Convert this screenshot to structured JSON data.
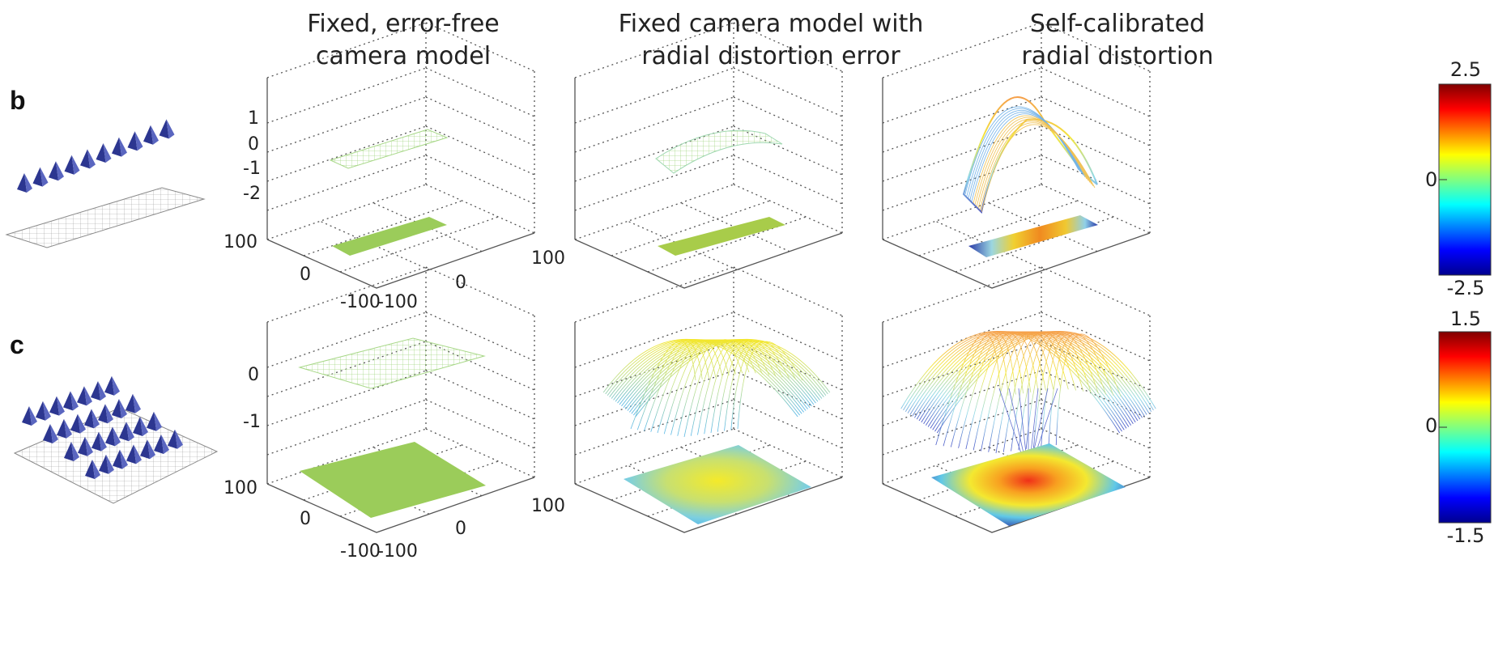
{
  "titles": [
    {
      "line1": "Fixed, error-free",
      "line2": "camera model"
    },
    {
      "line1": "Fixed camera model with",
      "line2": "radial distortion error"
    },
    {
      "line1": "Self-calibrated",
      "line2": "radial distortion"
    }
  ],
  "panel_labels": {
    "b": "b",
    "c": "c"
  },
  "axis_ticks": {
    "row_b_z": [
      "1",
      "0",
      "-1",
      "-2"
    ],
    "row_c_z": [
      "0",
      "-1"
    ],
    "x": [
      "-100",
      "0",
      "100"
    ],
    "y": [
      "100",
      "0",
      "-100"
    ]
  },
  "colorbars": [
    {
      "max": "2.5",
      "mid": "0",
      "min": "-2.5"
    },
    {
      "max": "1.5",
      "mid": "0",
      "min": "-1.5"
    }
  ],
  "colors": {
    "flat_green": "#9bcc5a",
    "camera_blue": "#3c46a0",
    "grid_gray": "#b8b8b8"
  }
}
